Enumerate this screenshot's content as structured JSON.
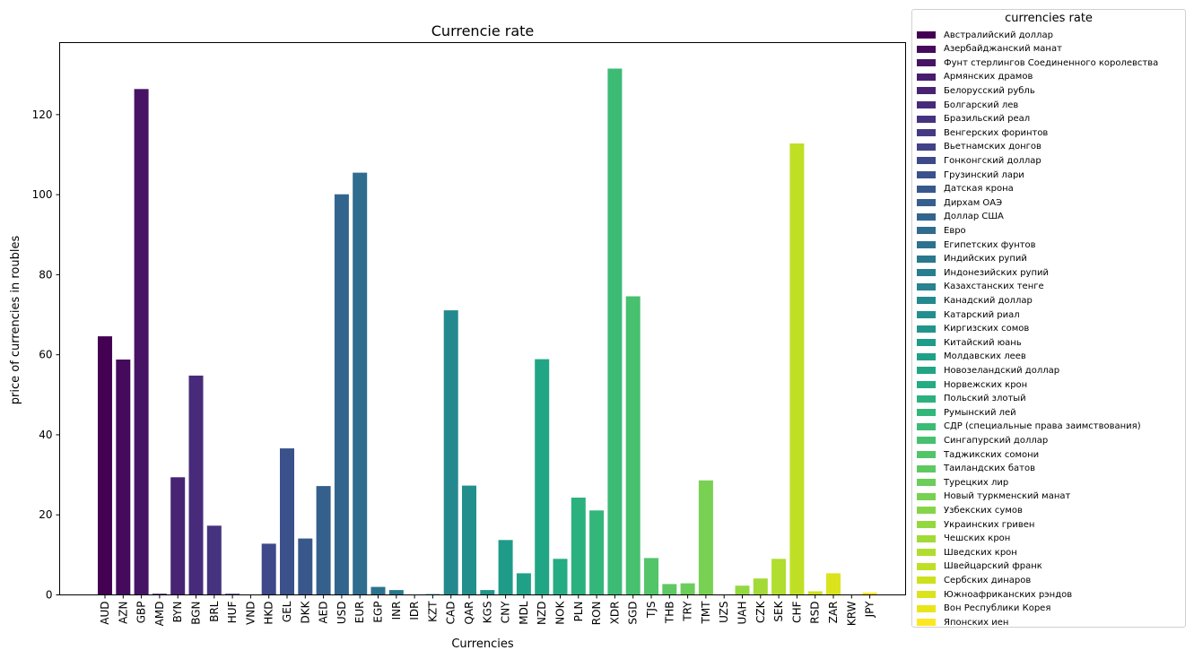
{
  "chart_data": {
    "type": "bar",
    "title": "Currencie rate",
    "xlabel": "Currencies",
    "ylabel": "price of currencies in roubles",
    "ylim": [
      0,
      138
    ],
    "yticks": [
      0,
      20,
      40,
      60,
      80,
      100,
      120
    ],
    "grid": false,
    "legend_title": "currencies rate",
    "legend_position": "outside-right",
    "categories": [
      "AUD",
      "AZN",
      "GBP",
      "AMD",
      "BYN",
      "BGN",
      "BRL",
      "HUF",
      "VND",
      "HKD",
      "GEL",
      "DKK",
      "AED",
      "USD",
      "EUR",
      "EGP",
      "INR",
      "IDR",
      "KZT",
      "CAD",
      "QAR",
      "KGS",
      "CNY",
      "MDL",
      "NZD",
      "NOK",
      "PLN",
      "RON",
      "XDR",
      "SGD",
      "TJS",
      "THB",
      "TRY",
      "TMT",
      "UZS",
      "UAH",
      "CZK",
      "SEK",
      "CHF",
      "RSD",
      "ZAR",
      "KRW",
      "JPY"
    ],
    "values": [
      64.6,
      58.8,
      126.4,
      0.3,
      29.4,
      54.8,
      17.3,
      0.3,
      0.1,
      12.8,
      36.6,
      14.1,
      27.2,
      100.1,
      105.5,
      2.0,
      1.2,
      0.1,
      0.2,
      71.1,
      27.3,
      1.2,
      13.7,
      5.4,
      58.9,
      9.0,
      24.3,
      21.1,
      131.5,
      74.6,
      9.2,
      2.7,
      2.9,
      28.6,
      0.1,
      2.3,
      4.1,
      9.0,
      112.8,
      0.9,
      5.4,
      0.1,
      0.6
    ],
    "legend_entries": [
      "Австралийский доллар",
      "Азербайджанский манат",
      "Фунт стерлингов Соединенного королевства",
      "Армянских драмов",
      "Белорусский рубль",
      "Болгарский лев",
      "Бразильский реал",
      "Венгерских форинтов",
      "Вьетнамских донгов",
      "Гонконгский доллар",
      "Грузинский лари",
      "Датская крона",
      "Дирхам ОАЭ",
      "Доллар США",
      "Евро",
      "Египетских фунтов",
      "Индийских рупий",
      "Индонезийских рупий",
      "Казахстанских тенге",
      "Канадский доллар",
      "Катарский риал",
      "Киргизских сомов",
      "Китайский юань",
      "Молдавских леев",
      "Новозеландский доллар",
      "Норвежских крон",
      "Польский злотый",
      "Румынский лей",
      "СДР (специальные права заимствования)",
      "Сингапурский доллар",
      "Таджикских сомони",
      "Таиландских батов",
      "Турецких лир",
      "Новый туркменский манат",
      "Узбекских сумов",
      "Украинских гривен",
      "Чешских крон",
      "Шведских крон",
      "Швейцарский франк",
      "Сербских динаров",
      "Южноафриканских рэндов",
      "Вон Республики Корея",
      "Японских иен"
    ],
    "colormap": "viridis",
    "colors": [
      "#440154",
      "#450a5c",
      "#471365",
      "#481b6d",
      "#482374",
      "#472b7a",
      "#46337f",
      "#443a83",
      "#414287",
      "#3e4989",
      "#3b518b",
      "#38588c",
      "#355f8d",
      "#32658e",
      "#2f6c8e",
      "#2c728e",
      "#2a788e",
      "#287d8e",
      "#26838f",
      "#24898e",
      "#228f8d",
      "#21958b",
      "#1f9b8a",
      "#1fa188",
      "#21a685",
      "#25ac82",
      "#2bb17e",
      "#33b67a",
      "#3cbb75",
      "#47c06f",
      "#52c569",
      "#5ec962",
      "#6bcd5a",
      "#78d152",
      "#86d549",
      "#94d840",
      "#a2da37",
      "#b0dd2f",
      "#bfdf25",
      "#cde11d",
      "#dbe31d",
      "#e9e51a",
      "#fde725"
    ]
  }
}
